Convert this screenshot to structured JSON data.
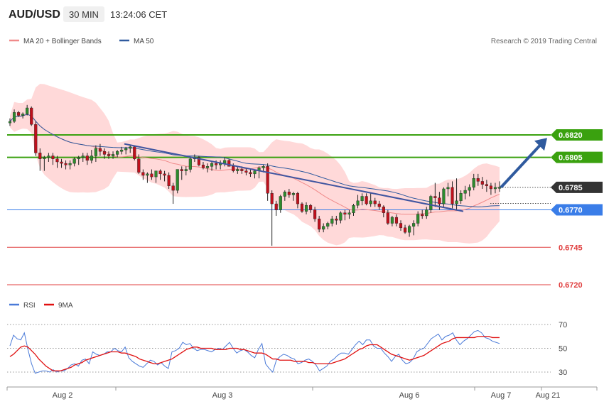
{
  "header": {
    "symbol": "AUD/USD",
    "timeframe": "30 MIN",
    "time": "13:24:06 CET"
  },
  "legend": {
    "bollinger_label": "MA 20 + Bollinger Bands",
    "ma50_label": "MA 50",
    "credit": "Research © 2019 Trading Central"
  },
  "rsi_legend": {
    "rsi_label": "RSI",
    "ma_label": "9MA"
  },
  "colors": {
    "up_candle": "#2e8b2e",
    "down_candle": "#c0101c",
    "bollinger_band": "#ffd9d9",
    "ma20": "#f08a8a",
    "ma50": "#2f5a9e",
    "resistance": "#3aa10f",
    "pivot": "#3a7de8",
    "support": "#e04040",
    "current_price": "#333333",
    "rsi": "#4a7ad8",
    "rsi_ma": "#e01010"
  },
  "chart_data": [
    {
      "type": "candlestick",
      "title": "AUD/USD",
      "x_labels": [
        "Aug 2",
        "Aug 3",
        "Aug 6",
        "Aug 7",
        "Aug 21"
      ],
      "price_range": [
        0.6715,
        0.684
      ],
      "levels": [
        {
          "label": "0.6820",
          "value": 0.682,
          "kind": "resistance"
        },
        {
          "label": "0.6805",
          "value": 0.6805,
          "kind": "resistance"
        },
        {
          "label": "0.6785",
          "value": 0.6785,
          "kind": "current"
        },
        {
          "label": "0.6770",
          "value": 0.677,
          "kind": "pivot"
        },
        {
          "label": "0.6745",
          "value": 0.6745,
          "kind": "support"
        },
        {
          "label": "0.6720",
          "value": 0.672,
          "kind": "support"
        }
      ],
      "trendline": [
        [
          0.6814,
          0.6769
        ]
      ],
      "target_arrow": {
        "from": 0.6785,
        "to": 0.6818
      },
      "candles": [
        [
          0.6828,
          0.6831,
          0.6826,
          0.6829
        ],
        [
          0.6829,
          0.6837,
          0.6828,
          0.6835
        ],
        [
          0.6835,
          0.6836,
          0.6832,
          0.6833
        ],
        [
          0.6833,
          0.6835,
          0.6831,
          0.6834
        ],
        [
          0.6834,
          0.684,
          0.6833,
          0.6838
        ],
        [
          0.6838,
          0.6839,
          0.6826,
          0.6827
        ],
        [
          0.6827,
          0.6829,
          0.6806,
          0.6808
        ],
        [
          0.6808,
          0.6811,
          0.6796,
          0.6804
        ],
        [
          0.6804,
          0.6806,
          0.6796,
          0.6805
        ],
        [
          0.6805,
          0.6808,
          0.6802,
          0.6806
        ],
        [
          0.6806,
          0.6808,
          0.68,
          0.6804
        ],
        [
          0.6804,
          0.6806,
          0.6798,
          0.6802
        ],
        [
          0.6802,
          0.6804,
          0.6798,
          0.6801
        ],
        [
          0.6801,
          0.6803,
          0.6797,
          0.68
        ],
        [
          0.68,
          0.6803,
          0.6797,
          0.6801
        ],
        [
          0.6801,
          0.6805,
          0.6799,
          0.6804
        ],
        [
          0.6804,
          0.6806,
          0.68,
          0.6805
        ],
        [
          0.6805,
          0.6808,
          0.6802,
          0.6806
        ],
        [
          0.6806,
          0.6808,
          0.68,
          0.6803
        ],
        [
          0.6803,
          0.681,
          0.6801,
          0.6806
        ],
        [
          0.6806,
          0.6813,
          0.6802,
          0.6811
        ],
        [
          0.6811,
          0.6814,
          0.6806,
          0.6809
        ],
        [
          0.6809,
          0.6811,
          0.6804,
          0.6807
        ],
        [
          0.6807,
          0.6809,
          0.6804,
          0.6806
        ],
        [
          0.6806,
          0.6809,
          0.6804,
          0.6807
        ],
        [
          0.6807,
          0.681,
          0.6805,
          0.6809
        ],
        [
          0.6809,
          0.6812,
          0.6807,
          0.681
        ],
        [
          0.681,
          0.6812,
          0.6807,
          0.6811
        ],
        [
          0.6811,
          0.6813,
          0.6808,
          0.6812
        ],
        [
          0.6812,
          0.6813,
          0.6803,
          0.6804
        ],
        [
          0.6804,
          0.6807,
          0.6794,
          0.6795
        ],
        [
          0.6795,
          0.6797,
          0.679,
          0.6793
        ],
        [
          0.6793,
          0.6795,
          0.6788,
          0.6794
        ],
        [
          0.6794,
          0.6797,
          0.679,
          0.6792
        ],
        [
          0.6792,
          0.6796,
          0.6788,
          0.6796
        ],
        [
          0.6796,
          0.6797,
          0.679,
          0.6794
        ],
        [
          0.6794,
          0.6796,
          0.6789,
          0.6793
        ],
        [
          0.6793,
          0.6795,
          0.6784,
          0.6786
        ],
        [
          0.6786,
          0.6788,
          0.6774,
          0.6783
        ],
        [
          0.6783,
          0.6797,
          0.6781,
          0.6797
        ],
        [
          0.6797,
          0.6799,
          0.679,
          0.6796
        ],
        [
          0.6796,
          0.6799,
          0.6793,
          0.6797
        ],
        [
          0.6797,
          0.6805,
          0.6795,
          0.6804
        ],
        [
          0.6804,
          0.6807,
          0.6802,
          0.6805
        ],
        [
          0.6805,
          0.6806,
          0.6799,
          0.68
        ],
        [
          0.68,
          0.6802,
          0.6797,
          0.6798
        ],
        [
          0.6798,
          0.6801,
          0.6795,
          0.6799
        ],
        [
          0.6799,
          0.6802,
          0.6796,
          0.6801
        ],
        [
          0.6801,
          0.6803,
          0.6797,
          0.68
        ],
        [
          0.68,
          0.6803,
          0.6797,
          0.6801
        ],
        [
          0.6801,
          0.6805,
          0.6799,
          0.6803
        ],
        [
          0.6803,
          0.6804,
          0.6799,
          0.6799
        ],
        [
          0.6799,
          0.6801,
          0.6795,
          0.6796
        ],
        [
          0.6796,
          0.6799,
          0.6794,
          0.6797
        ],
        [
          0.6797,
          0.6799,
          0.6794,
          0.6796
        ],
        [
          0.6796,
          0.6798,
          0.6793,
          0.6795
        ],
        [
          0.6795,
          0.6797,
          0.6792,
          0.6794
        ],
        [
          0.6794,
          0.6797,
          0.6791,
          0.6796
        ],
        [
          0.6796,
          0.6799,
          0.6791,
          0.6798
        ],
        [
          0.6798,
          0.68,
          0.6795,
          0.6799
        ],
        [
          0.6799,
          0.6801,
          0.6776,
          0.6781
        ],
        [
          0.6781,
          0.6783,
          0.6746,
          0.6774
        ],
        [
          0.6774,
          0.6776,
          0.6766,
          0.677
        ],
        [
          0.677,
          0.678,
          0.6768,
          0.6779
        ],
        [
          0.6779,
          0.6783,
          0.6776,
          0.6782
        ],
        [
          0.6782,
          0.6784,
          0.6778,
          0.678
        ],
        [
          0.678,
          0.6782,
          0.6776,
          0.6781
        ],
        [
          0.6781,
          0.6782,
          0.6771,
          0.6774
        ],
        [
          0.6774,
          0.6775,
          0.6768,
          0.6769
        ],
        [
          0.6769,
          0.6775,
          0.6767,
          0.6773
        ],
        [
          0.6773,
          0.6774,
          0.6768,
          0.677
        ],
        [
          0.677,
          0.6772,
          0.6762,
          0.6764
        ],
        [
          0.6764,
          0.6766,
          0.6755,
          0.6757
        ],
        [
          0.6757,
          0.6761,
          0.6755,
          0.6759
        ],
        [
          0.6759,
          0.6762,
          0.6757,
          0.6761
        ],
        [
          0.6761,
          0.6766,
          0.6759,
          0.6764
        ],
        [
          0.6764,
          0.6766,
          0.676,
          0.6763
        ],
        [
          0.6763,
          0.6769,
          0.6761,
          0.6768
        ],
        [
          0.6768,
          0.677,
          0.6763,
          0.6767
        ],
        [
          0.6767,
          0.677,
          0.6764,
          0.6768
        ],
        [
          0.6768,
          0.6774,
          0.6766,
          0.6773
        ],
        [
          0.6773,
          0.678,
          0.6771,
          0.6776
        ],
        [
          0.6776,
          0.6781,
          0.6773,
          0.6779
        ],
        [
          0.6779,
          0.6781,
          0.6773,
          0.6774
        ],
        [
          0.6774,
          0.6781,
          0.6772,
          0.6776
        ],
        [
          0.6776,
          0.6778,
          0.6772,
          0.6774
        ],
        [
          0.6774,
          0.6776,
          0.677,
          0.6772
        ],
        [
          0.6772,
          0.6773,
          0.6765,
          0.6768
        ],
        [
          0.6768,
          0.677,
          0.676,
          0.6761
        ],
        [
          0.6761,
          0.6766,
          0.6759,
          0.6765
        ],
        [
          0.6765,
          0.6767,
          0.6759,
          0.6761
        ],
        [
          0.6761,
          0.6763,
          0.6756,
          0.6758
        ],
        [
          0.6758,
          0.676,
          0.6754,
          0.6755
        ],
        [
          0.6755,
          0.676,
          0.6752,
          0.6759
        ],
        [
          0.6759,
          0.6763,
          0.6753,
          0.6761
        ],
        [
          0.6761,
          0.6769,
          0.6759,
          0.6767
        ],
        [
          0.6767,
          0.677,
          0.6764,
          0.6766
        ],
        [
          0.6766,
          0.6772,
          0.6764,
          0.677
        ],
        [
          0.677,
          0.678,
          0.6768,
          0.6779
        ],
        [
          0.6779,
          0.6788,
          0.6772,
          0.6778
        ],
        [
          0.6778,
          0.6782,
          0.677,
          0.6774
        ],
        [
          0.6774,
          0.6785,
          0.6772,
          0.6784
        ],
        [
          0.6784,
          0.6788,
          0.6779,
          0.6785
        ],
        [
          0.6785,
          0.6789,
          0.6771,
          0.6774
        ],
        [
          0.6774,
          0.6791,
          0.677,
          0.6776
        ],
        [
          0.6776,
          0.6783,
          0.6774,
          0.6781
        ],
        [
          0.6781,
          0.6786,
          0.6777,
          0.6783
        ],
        [
          0.6783,
          0.6787,
          0.6779,
          0.6785
        ],
        [
          0.6785,
          0.6794,
          0.6783,
          0.6791
        ],
        [
          0.6791,
          0.6794,
          0.6786,
          0.6789
        ],
        [
          0.6789,
          0.6792,
          0.6784,
          0.6787
        ],
        [
          0.6787,
          0.679,
          0.6782,
          0.6786
        ],
        [
          0.6786,
          0.6788,
          0.678,
          0.6784
        ],
        [
          0.6784,
          0.6788,
          0.6781,
          0.6785
        ],
        [
          0.6785,
          0.6789,
          0.6782,
          0.6785
        ]
      ]
    },
    {
      "type": "line",
      "title": "RSI",
      "y_ticks": [
        70,
        50,
        30
      ],
      "ylim": [
        20,
        78
      ],
      "series": [
        {
          "name": "RSI",
          "values": [
            52,
            61,
            58,
            57,
            63,
            49,
            37,
            29,
            30,
            31,
            31,
            30,
            32,
            30,
            31,
            31,
            33,
            36,
            37,
            35,
            40,
            41,
            37,
            47,
            45,
            44,
            45,
            47,
            47,
            50,
            48,
            47,
            51,
            42,
            39,
            37,
            35,
            34,
            37,
            40,
            39,
            36,
            38,
            35,
            33,
            47,
            48,
            50,
            55,
            53,
            54,
            50,
            48,
            49,
            49,
            48,
            47,
            49,
            50,
            49,
            52,
            55,
            50,
            46,
            48,
            49,
            47,
            44,
            42,
            49,
            54,
            37,
            33,
            30,
            40,
            43,
            45,
            44,
            42,
            41,
            37,
            38,
            40,
            41,
            39,
            36,
            31,
            33,
            35,
            39,
            41,
            44,
            46,
            46,
            45,
            49,
            53,
            56,
            53,
            57,
            57,
            52,
            50,
            50,
            46,
            43,
            39,
            43,
            45,
            40,
            37,
            38,
            41,
            47,
            49,
            50,
            54,
            58,
            60,
            62,
            57,
            60,
            61,
            63,
            57,
            53,
            56,
            58,
            61,
            64,
            65,
            63,
            59,
            58,
            56,
            55,
            54
          ]
        },
        {
          "name": "9MA",
          "values": [
            43,
            45,
            48,
            51,
            52,
            51,
            48,
            45,
            41,
            38,
            35,
            33,
            31,
            31,
            31,
            32,
            33,
            34,
            36,
            37,
            38,
            40,
            41,
            42,
            43,
            44,
            45,
            46,
            47,
            47,
            47,
            46,
            46,
            45,
            44,
            43,
            41,
            40,
            39,
            38,
            37,
            37,
            38,
            39,
            40,
            41,
            43,
            45,
            47,
            49,
            50,
            51,
            51,
            50,
            50,
            50,
            50,
            49,
            49,
            49,
            49,
            50,
            50,
            50,
            49,
            49,
            48,
            47,
            46,
            46,
            46,
            45,
            43,
            41,
            41,
            40,
            40,
            40,
            40,
            39,
            39,
            39,
            39,
            38,
            38,
            37,
            37,
            37,
            37,
            37,
            38,
            39,
            40,
            41,
            43,
            45,
            47,
            49,
            50,
            52,
            53,
            53,
            53,
            51,
            49,
            47,
            45,
            44,
            43,
            42,
            41,
            40,
            41,
            42,
            43,
            44,
            46,
            48,
            50,
            52,
            54,
            55,
            56,
            58,
            59,
            59,
            59,
            59,
            59,
            59,
            60,
            60,
            60,
            60,
            59,
            59,
            59
          ]
        }
      ]
    }
  ]
}
